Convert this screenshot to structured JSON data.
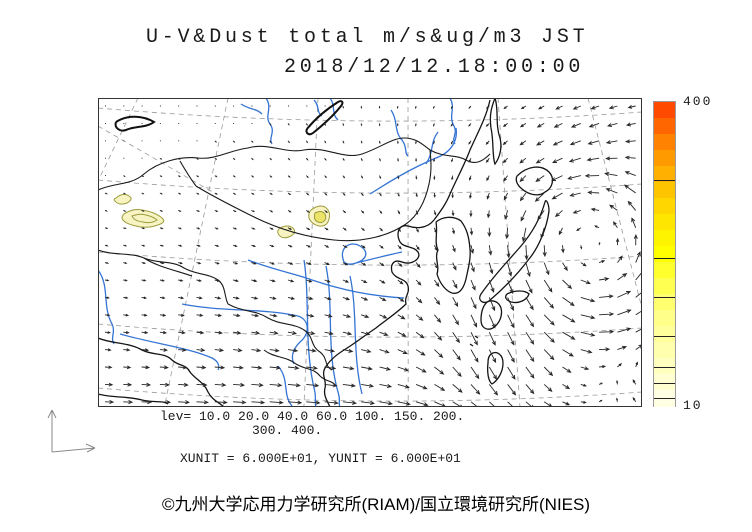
{
  "title": {
    "line1": "U-V&Dust total m/s&ug/m3 JST",
    "datetime": "2018/12/12.18:00:00"
  },
  "legend": {
    "levels_line1": "lev= 10.0 20.0 40.0 60.0 100. 150. 200.",
    "levels_line2": "300. 400.",
    "units": "XUNIT = 6.000E+01, YUNIT = 6.000E+01"
  },
  "colorbar": {
    "max_label": "400",
    "min_label": "10",
    "min_value": 10,
    "max_value": 400,
    "tick_values": [
      20,
      40,
      60,
      100,
      150,
      200,
      300
    ],
    "colors_bottom_to_top": [
      "#ffffe4",
      "#ffffd2",
      "#ffffc0",
      "#ffffae",
      "#ffff9c",
      "#ffff8a",
      "#ffff70",
      "#ffff52",
      "#ffff2e",
      "#ffff00",
      "#fff400",
      "#ffe600",
      "#ffd600",
      "#ffc400",
      "#ffb000",
      "#ff9a00",
      "#ff8200",
      "#ff6600",
      "#ff4a00"
    ]
  },
  "credit": "©九州大学応用力学研究所(RIAM)/国立環境研究所(NIES)",
  "colors": {
    "river": "#3474d4",
    "coast": "#141414",
    "border": "#1a1a1a",
    "lake": "#111111",
    "graticule": "#9a9a9a",
    "wind_vector": "#262626",
    "dust_fill": "#f7f3c3",
    "dust_inner_fill": "#ece468",
    "dust_stroke": "#9c9c3a",
    "frame": "#333333",
    "axes_indicator": "#8a8a8a"
  }
}
